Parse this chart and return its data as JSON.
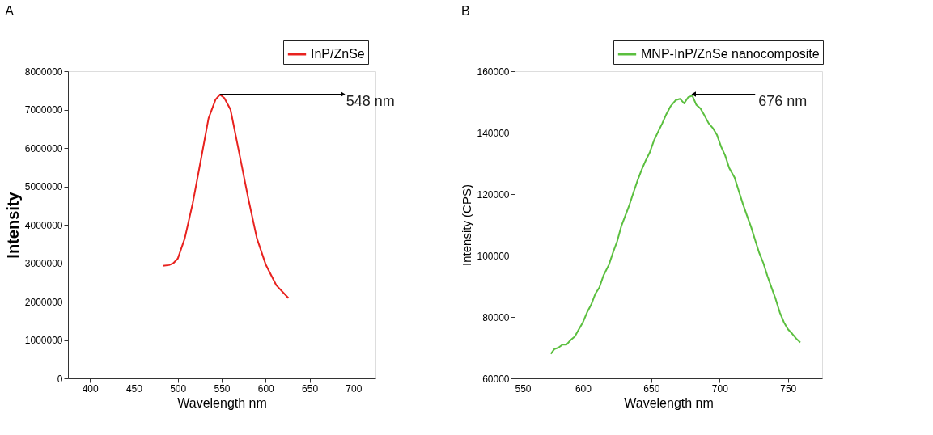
{
  "chart_data": [
    {
      "type": "line",
      "title": "A",
      "xlabel": "Wavelength nm",
      "ylabel": "Intensity",
      "xlim": [
        375,
        725
      ],
      "xticks": [
        400,
        450,
        500,
        550,
        600,
        650,
        700
      ],
      "ylim": [
        0,
        8000000
      ],
      "yticks": [
        0,
        1000000,
        2000000,
        3000000,
        4000000,
        5000000,
        6000000,
        7000000,
        8000000
      ],
      "legend": "top right",
      "grid": false,
      "annotations": [
        {
          "text": "548 nm",
          "x": 548,
          "y": 7400000
        }
      ],
      "series": [
        {
          "name": "InP/ZnSe",
          "color": "#e8221f",
          "x": [
            483,
            490,
            495,
            500,
            508,
            517,
            527,
            535,
            543,
            548,
            553,
            560,
            570,
            580,
            590,
            600,
            612,
            626
          ],
          "values": [
            2930000,
            2950000,
            3000000,
            3120000,
            3650000,
            4560000,
            5780000,
            6770000,
            7260000,
            7390000,
            7300000,
            7000000,
            5860000,
            4710000,
            3650000,
            2970000,
            2430000,
            2090000
          ]
        }
      ]
    },
    {
      "type": "line",
      "title": "B",
      "xlabel": "Wavelength nm",
      "ylabel": "Intensity (CPS)",
      "xlim": [
        550,
        775
      ],
      "xticks": [
        550,
        600,
        650,
        700,
        750
      ],
      "ylim": [
        60000,
        160000
      ],
      "yticks": [
        60000,
        80000,
        100000,
        120000,
        140000,
        160000
      ],
      "legend": "top right",
      "grid": false,
      "annotations": [
        {
          "text": "676 nm",
          "x": 681,
          "y": 152500
        }
      ],
      "series": [
        {
          "name": "MNP-InP/ZnSe nanocomposite",
          "color": "#5bbf3f",
          "x": [
            576.5,
            579,
            582,
            585,
            588,
            591,
            594,
            597,
            600,
            603,
            606,
            609,
            612,
            615,
            619,
            622,
            625,
            628,
            631,
            634,
            637,
            640,
            643,
            646,
            649,
            652,
            655,
            658,
            661,
            664,
            668,
            671,
            674,
            677,
            680,
            683,
            686,
            689,
            692,
            695,
            698,
            701,
            704,
            707,
            711,
            714,
            717,
            720,
            723,
            726,
            729,
            732,
            735,
            738,
            741,
            744,
            747,
            750,
            753,
            756,
            759
          ],
          "values": [
            68000,
            69500,
            70000,
            71000,
            71000,
            72500,
            73600,
            76000,
            78300,
            81500,
            84000,
            87500,
            89600,
            93500,
            97000,
            101000,
            104600,
            109500,
            113000,
            116500,
            120600,
            124500,
            128000,
            131000,
            133700,
            137500,
            140300,
            143000,
            146000,
            148500,
            150600,
            151000,
            149500,
            151500,
            152000,
            149000,
            147800,
            145500,
            143000,
            141500,
            139300,
            135500,
            132600,
            128500,
            125300,
            121000,
            116800,
            113000,
            109300,
            105000,
            100800,
            97500,
            93300,
            89500,
            85800,
            81500,
            78300,
            76000,
            74600,
            73000,
            71700
          ]
        }
      ]
    }
  ]
}
